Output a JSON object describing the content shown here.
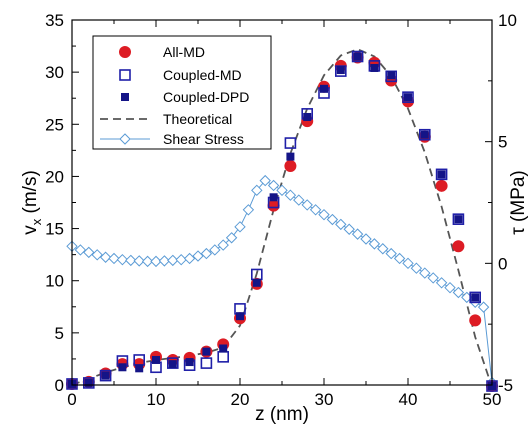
{
  "chart_data": {
    "type": "line",
    "xlabel": "z (nm)",
    "ylabel": "v",
    "ylabel_sub": "x",
    "ylabel_units": " (m/s)",
    "y2label": "τ (MPa)",
    "xlim": [
      0,
      50
    ],
    "ylim": [
      0,
      35
    ],
    "y2lim": [
      -5,
      10
    ],
    "x_ticks": [
      0,
      10,
      20,
      30,
      40,
      50
    ],
    "y_ticks": [
      0,
      5,
      10,
      15,
      20,
      25,
      30,
      35
    ],
    "y2_ticks": [
      -5,
      0,
      5,
      10
    ],
    "x_tick_labels": [
      "0",
      "10",
      "20",
      "30",
      "40",
      "50"
    ],
    "y_tick_labels": [
      "0",
      "5",
      "10",
      "15",
      "20",
      "25",
      "30",
      "35"
    ],
    "y2_tick_labels": [
      "-5",
      "0",
      "5",
      "10"
    ],
    "grid": false,
    "legend_position": "top-left",
    "series": [
      {
        "name": "All-MD",
        "marker": "filled-circle",
        "color": "#dd1c24",
        "axis": "left",
        "x": [
          0,
          2,
          4,
          6,
          8,
          10,
          12,
          14,
          16,
          18,
          20,
          22,
          24,
          26,
          28,
          30,
          32,
          34,
          36,
          38,
          40,
          42,
          44,
          46,
          48,
          50
        ],
        "y": [
          0.1,
          0.3,
          1.1,
          2.0,
          2.0,
          2.7,
          2.4,
          2.6,
          3.2,
          3.9,
          6.4,
          9.7,
          17.2,
          21.0,
          25.3,
          28.6,
          30.6,
          31.4,
          30.9,
          29.2,
          27.2,
          23.8,
          19.1,
          13.3,
          6.2,
          -0.1
        ]
      },
      {
        "name": "Coupled-MD",
        "marker": "open-square",
        "color": "#1f1fa8",
        "axis": "left",
        "x": [
          0,
          2,
          4,
          6,
          8,
          10,
          12,
          14,
          16,
          18,
          20,
          22,
          24,
          26,
          28,
          30,
          32,
          34,
          36,
          38,
          40,
          42,
          44,
          46,
          48,
          50
        ],
        "y": [
          0.1,
          0.2,
          0.9,
          2.3,
          2.4,
          1.7,
          2.1,
          1.9,
          2.1,
          2.7,
          7.3,
          10.6,
          17.5,
          23.2,
          26.0,
          28.0,
          30.1,
          31.5,
          30.6,
          29.6,
          27.6,
          24.0,
          20.2,
          15.9,
          8.4,
          -0.1
        ]
      },
      {
        "name": "Coupled-DPD",
        "marker": "filled-square",
        "color": "#141487",
        "axis": "left",
        "x": [
          0,
          2,
          4,
          6,
          8,
          10,
          12,
          14,
          16,
          18,
          20,
          22,
          24,
          26,
          28,
          30,
          32,
          34,
          36,
          38,
          40,
          42,
          44,
          46,
          48,
          50
        ],
        "y": [
          0.1,
          0.2,
          0.9,
          1.7,
          1.6,
          2.4,
          2.0,
          2.2,
          3.2,
          3.5,
          6.6,
          9.8,
          18.0,
          21.9,
          25.7,
          28.4,
          30.2,
          31.5,
          30.4,
          29.7,
          27.6,
          24.0,
          20.2,
          15.9,
          8.4,
          -0.1
        ]
      },
      {
        "name": "Theoretical",
        "line_style": "dashed",
        "color": "#555555",
        "axis": "left",
        "x": [
          0,
          2,
          4,
          6,
          8,
          10,
          12,
          14,
          16,
          18,
          20,
          22,
          24,
          26,
          28,
          30,
          32,
          34,
          36,
          38,
          40,
          42,
          44,
          46,
          48,
          50
        ],
        "y": [
          0.0,
          0.6,
          1.2,
          1.7,
          2.1,
          2.4,
          2.6,
          2.8,
          3.1,
          3.6,
          5.7,
          10.7,
          16.8,
          22.2,
          26.5,
          29.7,
          31.6,
          32.2,
          31.5,
          29.6,
          26.5,
          22.3,
          17.1,
          11.0,
          4.6,
          -0.2
        ]
      },
      {
        "name": "Shear Stress",
        "marker": "open-diamond",
        "color": "#5b9bd5",
        "axis": "right",
        "x": [
          0,
          1,
          2,
          3,
          4,
          5,
          6,
          7,
          8,
          9,
          10,
          11,
          12,
          13,
          14,
          15,
          16,
          17,
          18,
          19,
          20,
          21,
          22,
          23,
          24,
          25,
          26,
          27,
          28,
          29,
          30,
          31,
          32,
          33,
          34,
          35,
          36,
          37,
          38,
          39,
          40,
          41,
          42,
          43,
          44,
          45,
          46,
          47,
          48,
          49,
          50
        ],
        "y": [
          0.7,
          0.55,
          0.45,
          0.35,
          0.25,
          0.2,
          0.15,
          0.12,
          0.1,
          0.08,
          0.08,
          0.1,
          0.12,
          0.15,
          0.2,
          0.3,
          0.4,
          0.55,
          0.75,
          1.05,
          1.5,
          2.2,
          3.0,
          3.4,
          3.2,
          3.0,
          2.8,
          2.6,
          2.4,
          2.2,
          2.0,
          1.8,
          1.6,
          1.4,
          1.2,
          1.0,
          0.8,
          0.6,
          0.4,
          0.2,
          0.0,
          -0.2,
          -0.4,
          -0.6,
          -0.8,
          -1.0,
          -1.2,
          -1.4,
          -1.6,
          -1.8,
          -4.9
        ]
      }
    ]
  }
}
